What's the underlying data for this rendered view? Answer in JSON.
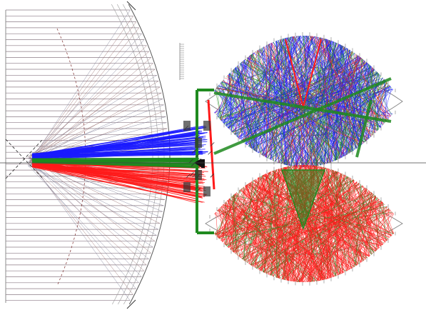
{
  "colors": {
    "background": "#ffffff",
    "rays_blue": "#1a1aff",
    "rays_green": "#1f8a1f",
    "rays_red": "#ff1a1a",
    "rays_gray": "#7a6a6a",
    "structure": "#808080",
    "dark": "#222222"
  },
  "diagram": {
    "type": "optical-ray-trace",
    "elements": [
      {
        "name": "large-aspheric-mirror",
        "color": "gray"
      },
      {
        "name": "horizontal-ray-bundle",
        "color": "gray"
      },
      {
        "name": "blue-upper-fan",
        "color": "blue"
      },
      {
        "name": "red-lower-fan",
        "color": "red"
      },
      {
        "name": "green-axial-fan",
        "color": "green"
      },
      {
        "name": "upper-lens-dome",
        "colors": [
          "blue",
          "green",
          "red"
        ]
      },
      {
        "name": "lower-lens-dome",
        "colors": [
          "red",
          "green"
        ]
      },
      {
        "name": "optical-axis",
        "color": "dark"
      }
    ]
  }
}
